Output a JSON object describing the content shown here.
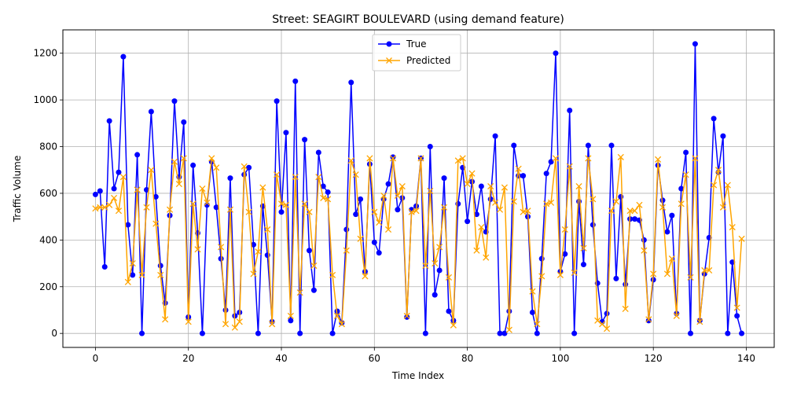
{
  "chart_data": {
    "type": "line",
    "title": "Street: SEAGIRT BOULEVARD (using demand feature)",
    "xlabel": "Time Index",
    "ylabel": "Traffic Volume",
    "xlim": [
      -7,
      146
    ],
    "ylim": [
      -60,
      1300
    ],
    "xticks": [
      0,
      20,
      40,
      60,
      80,
      100,
      120,
      140
    ],
    "yticks": [
      0,
      200,
      400,
      600,
      800,
      1000,
      1200
    ],
    "grid": true,
    "legend_position": "top-center",
    "series": [
      {
        "name": "True",
        "color": "#0000ff",
        "marker": "circle",
        "values": [
          595,
          610,
          285,
          910,
          620,
          690,
          1185,
          465,
          250,
          765,
          0,
          615,
          950,
          585,
          290,
          130,
          505,
          995,
          670,
          905,
          70,
          720,
          430,
          0,
          550,
          735,
          540,
          320,
          100,
          665,
          75,
          90,
          680,
          710,
          380,
          0,
          545,
          335,
          50,
          995,
          520,
          860,
          55,
          1080,
          0,
          830,
          355,
          185,
          775,
          630,
          605,
          0,
          95,
          45,
          445,
          1075,
          510,
          575,
          265,
          725,
          390,
          345,
          575,
          640,
          755,
          530,
          580,
          70,
          530,
          545,
          750,
          0,
          800,
          165,
          270,
          665,
          95,
          55,
          555,
          710,
          480,
          650,
          510,
          630,
          435,
          575,
          845,
          0,
          0,
          95,
          805,
          675,
          675,
          500,
          90,
          0,
          320,
          685,
          735,
          1200,
          265,
          340,
          955,
          0,
          565,
          295,
          805,
          465,
          215,
          50,
          85,
          805,
          235,
          585,
          210,
          490,
          490,
          485,
          400,
          55,
          230,
          720,
          570,
          435,
          505,
          85,
          620,
          775,
          0,
          1240,
          55,
          255,
          410,
          920,
          690,
          845,
          0,
          305,
          75,
          0
        ]
      },
      {
        "name": "Predicted",
        "color": "#ffa500",
        "marker": "x",
        "values": [
          535,
          540,
          540,
          550,
          580,
          525,
          670,
          220,
          300,
          615,
          250,
          540,
          700,
          470,
          250,
          60,
          530,
          735,
          640,
          750,
          50,
          555,
          360,
          620,
          560,
          750,
          710,
          370,
          40,
          530,
          25,
          50,
          715,
          520,
          255,
          350,
          625,
          445,
          40,
          680,
          555,
          550,
          75,
          670,
          175,
          555,
          520,
          290,
          670,
          580,
          575,
          250,
          75,
          40,
          355,
          740,
          680,
          405,
          245,
          750,
          520,
          475,
          590,
          445,
          750,
          590,
          630,
          75,
          520,
          525,
          750,
          290,
          610,
          300,
          370,
          540,
          240,
          35,
          740,
          750,
          640,
          685,
          355,
          455,
          325,
          630,
          560,
          530,
          625,
          15,
          565,
          705,
          520,
          525,
          180,
          40,
          245,
          555,
          560,
          750,
          250,
          445,
          715,
          260,
          630,
          365,
          750,
          575,
          55,
          40,
          20,
          525,
          565,
          755,
          105,
          525,
          525,
          550,
          355,
          60,
          255,
          745,
          540,
          255,
          320,
          75,
          555,
          680,
          240,
          750,
          50,
          270,
          270,
          635,
          700,
          540,
          635,
          455,
          110,
          405
        ]
      }
    ]
  }
}
